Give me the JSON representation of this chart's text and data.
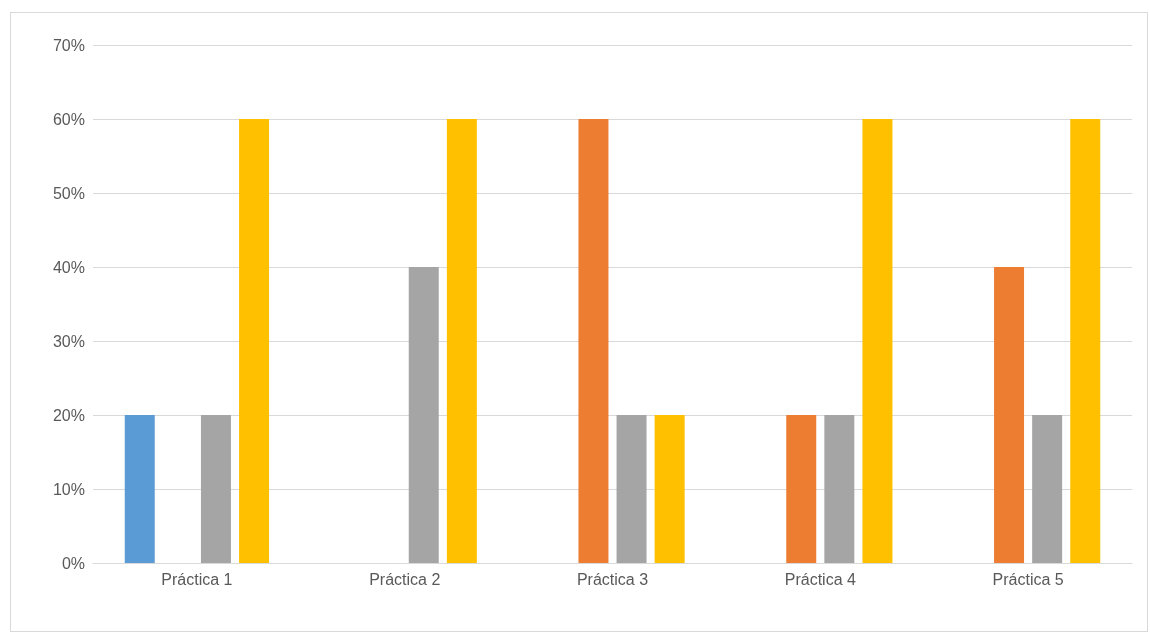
{
  "chart_data": {
    "type": "bar",
    "categories": [
      "Práctica 1",
      "Práctica 2",
      "Práctica 3",
      "Práctica 4",
      "Práctica 5"
    ],
    "series": [
      {
        "color": "#5b9bd5",
        "values": [
          20,
          0,
          0,
          0,
          0
        ]
      },
      {
        "color": "#ed7d31",
        "values": [
          0,
          0,
          60,
          20,
          40
        ]
      },
      {
        "color": "#a5a5a5",
        "values": [
          20,
          40,
          20,
          20,
          20
        ]
      },
      {
        "color": "#ffc000",
        "values": [
          60,
          60,
          20,
          60,
          60
        ]
      }
    ],
    "ylim": [
      0,
      70
    ],
    "yticks": [
      {
        "value": 0,
        "label": "0%"
      },
      {
        "value": 10,
        "label": "10%"
      },
      {
        "value": 20,
        "label": "20%"
      },
      {
        "value": 30,
        "label": "30%"
      },
      {
        "value": 40,
        "label": "40%"
      },
      {
        "value": 50,
        "label": "50%"
      },
      {
        "value": 60,
        "label": "60%"
      },
      {
        "value": 70,
        "label": "70%"
      }
    ],
    "grid": "y"
  }
}
